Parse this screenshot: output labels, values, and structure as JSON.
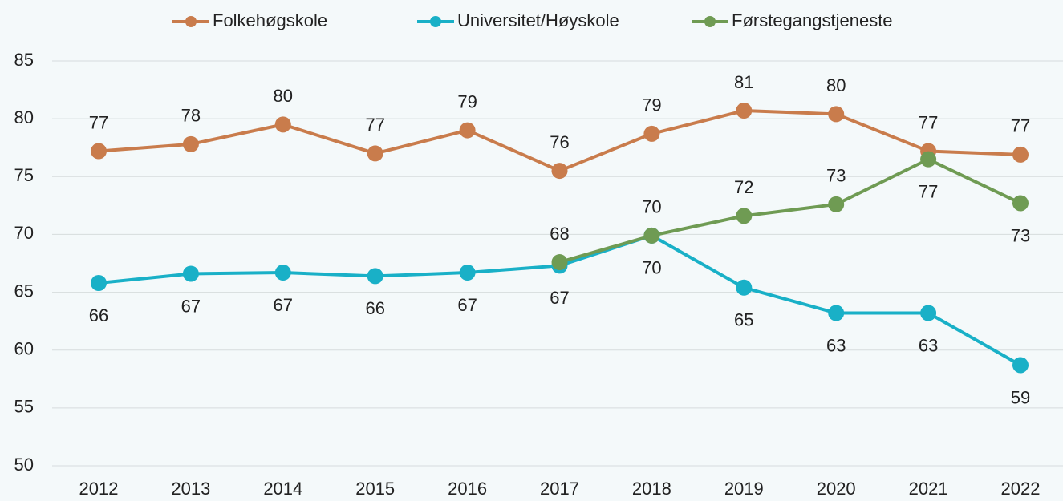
{
  "chart_data": {
    "type": "line",
    "categories": [
      "2012",
      "2013",
      "2014",
      "2015",
      "2016",
      "2017",
      "2018",
      "2019",
      "2020",
      "2021",
      "2022"
    ],
    "series": [
      {
        "name": "Folkehøgskole",
        "color": "#c97c4c",
        "values": [
          77.2,
          77.8,
          79.5,
          77.0,
          79.0,
          75.5,
          78.7,
          80.7,
          80.4,
          77.2,
          76.9
        ],
        "value_labels": [
          "77",
          "78",
          "80",
          "77",
          "79",
          "76",
          "79",
          "81",
          "80",
          "77",
          "77"
        ]
      },
      {
        "name": "Universitet/Høyskole",
        "color": "#19b0c7",
        "values": [
          65.8,
          66.6,
          66.7,
          66.4,
          66.7,
          67.3,
          69.9,
          65.4,
          63.2,
          63.2,
          58.7
        ],
        "value_labels": [
          "66",
          "67",
          "67",
          "66",
          "67",
          "67",
          "70",
          "65",
          "63",
          "63",
          "59"
        ]
      },
      {
        "name": "Førstegangstjeneste",
        "color": "#6f9b53",
        "values": [
          null,
          null,
          null,
          null,
          null,
          67.6,
          69.9,
          71.6,
          72.6,
          76.5,
          72.7
        ],
        "value_labels": [
          null,
          null,
          null,
          null,
          null,
          "68",
          "70",
          "72",
          "73",
          "77",
          "73"
        ]
      }
    ],
    "ylim": [
      50,
      85
    ],
    "yticks": [
      50,
      55,
      60,
      65,
      70,
      75,
      80,
      85
    ],
    "grid": true,
    "legend": "top"
  }
}
